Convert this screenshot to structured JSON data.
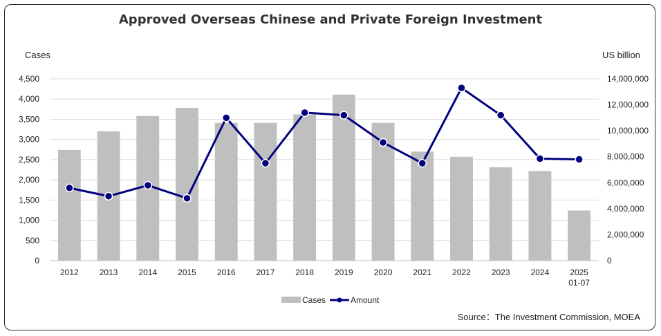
{
  "chart_data": {
    "type": "bar",
    "title": "Approved Overseas Chinese and Private Foreign Investment",
    "categories": [
      "2012",
      "2013",
      "2014",
      "2015",
      "2016",
      "2017",
      "2018",
      "2019",
      "2020",
      "2021",
      "2022",
      "2023",
      "2024",
      "2025\n01-07"
    ],
    "series": [
      {
        "name": "Cases",
        "type": "bar",
        "axis": "left",
        "color": "#bfbfbf",
        "values": [
          2740,
          3200,
          3580,
          3780,
          3410,
          3410,
          3620,
          4110,
          3410,
          2700,
          2570,
          2310,
          2220,
          1240
        ]
      },
      {
        "name": "Amount",
        "type": "line",
        "axis": "right",
        "color": "#000080",
        "values": [
          5600000,
          4960000,
          5800000,
          4800000,
          11000000,
          7500000,
          11400000,
          11200000,
          9100000,
          7500000,
          13300000,
          11200000,
          7850000,
          7800000
        ]
      }
    ],
    "y_left": {
      "label": "Cases",
      "min": 0,
      "max": 4500,
      "ticks": [
        0,
        500,
        1000,
        1500,
        2000,
        2500,
        3000,
        3500,
        4000,
        4500
      ],
      "tick_labels": [
        "0",
        "500",
        "1,000",
        "1,500",
        "2,000",
        "2,500",
        "3,000",
        "3,500",
        "4,000",
        "4,500"
      ]
    },
    "y_right": {
      "label": "US billion",
      "min": 0,
      "max": 14000000,
      "ticks": [
        0,
        2000000,
        4000000,
        6000000,
        8000000,
        10000000,
        12000000,
        14000000
      ],
      "tick_labels": [
        "0",
        "2,000,000",
        "4,000,000",
        "6,000,000",
        "8,000,000",
        "10,000,000",
        "12,000,000",
        "14,000,000"
      ]
    },
    "grid": true,
    "legend": {
      "position": "bottom",
      "entries": [
        "Cases",
        "Amount"
      ]
    },
    "source": "Source：The Investment Commission, MOEA"
  }
}
